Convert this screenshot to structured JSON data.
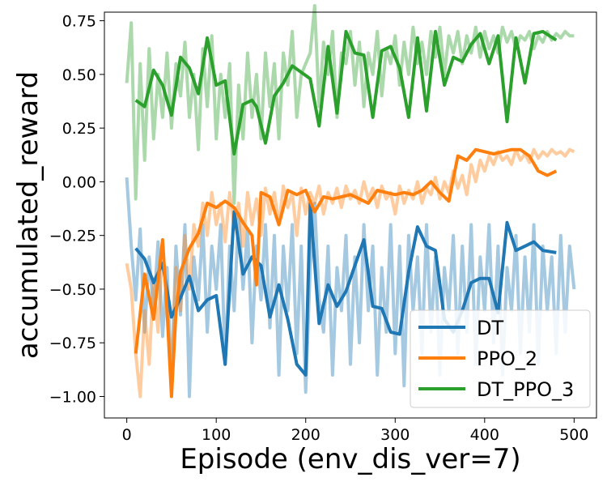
{
  "chart_data": {
    "type": "line",
    "xlabel": "Episode (env_dis_ver=7)",
    "ylabel": "accumulated_reward",
    "xlim": [
      -25,
      525
    ],
    "ylim": [
      -1.1,
      0.79
    ],
    "xticks": [
      0,
      100,
      200,
      300,
      400,
      500
    ],
    "xtick_labels": [
      "0",
      "100",
      "200",
      "300",
      "400",
      "500"
    ],
    "yticks": [
      -1.0,
      -0.75,
      -0.5,
      -0.25,
      0.0,
      0.25,
      0.5,
      0.75
    ],
    "ytick_labels": [
      "−1.00",
      "−0.75",
      "−0.50",
      "−0.25",
      "0.00",
      "0.25",
      "0.50",
      "0.75"
    ],
    "grid": false,
    "legend_position": "lower-right",
    "series": [
      {
        "name": "DT",
        "color": "#1f77b4",
        "raw_x": [
          0,
          5,
          10,
          15,
          20,
          25,
          30,
          35,
          40,
          45,
          50,
          55,
          60,
          65,
          70,
          75,
          80,
          85,
          90,
          95,
          100,
          105,
          110,
          115,
          120,
          125,
          130,
          135,
          140,
          145,
          150,
          155,
          160,
          165,
          170,
          175,
          180,
          185,
          190,
          195,
          200,
          205,
          210,
          215,
          220,
          225,
          230,
          235,
          240,
          245,
          250,
          255,
          260,
          265,
          270,
          275,
          280,
          285,
          290,
          295,
          300,
          305,
          310,
          315,
          320,
          325,
          330,
          335,
          340,
          345,
          350,
          355,
          360,
          365,
          370,
          375,
          380,
          385,
          390,
          395,
          400,
          405,
          410,
          415,
          420,
          425,
          430,
          435,
          440,
          445,
          450,
          455,
          460,
          465,
          470,
          475,
          480,
          485,
          490,
          495,
          500
        ],
        "raw_y": [
          0.02,
          -0.3,
          -0.55,
          -0.22,
          -0.7,
          -0.35,
          -0.6,
          -0.28,
          -0.72,
          -0.4,
          -0.95,
          -0.3,
          -0.62,
          -0.2,
          -1.0,
          -0.35,
          -0.55,
          -0.2,
          -0.7,
          -0.3,
          -0.5,
          -0.2,
          -0.85,
          -0.3,
          -0.6,
          -0.15,
          -0.5,
          -0.22,
          -0.75,
          -0.3,
          -0.55,
          -0.2,
          -0.68,
          -0.25,
          -0.9,
          -0.3,
          -0.6,
          -0.2,
          -0.8,
          -0.3,
          -0.98,
          -0.4,
          -0.1,
          -0.55,
          -0.7,
          -0.3,
          -0.9,
          -0.4,
          -0.6,
          -0.25,
          -0.85,
          -0.35,
          -0.75,
          -0.2,
          -0.6,
          -0.3,
          -0.9,
          -0.4,
          -0.7,
          -0.2,
          -0.8,
          -0.3,
          -0.95,
          -0.25,
          -0.6,
          -0.35,
          -0.8,
          -0.2,
          -0.7,
          -0.35,
          -0.9,
          -0.4,
          -0.6,
          -0.25,
          -0.8,
          -0.3,
          -0.7,
          -0.2,
          -0.85,
          -0.35,
          -0.6,
          -0.2,
          -0.75,
          -0.3,
          -0.9,
          -0.4,
          -0.6,
          -0.25,
          -0.8,
          -0.35,
          -0.7,
          -0.2,
          -0.85,
          -0.3,
          -0.6,
          -0.35,
          -0.8,
          -0.25,
          -0.7,
          -0.3,
          -0.5
        ],
        "x": [
          10,
          20,
          30,
          40,
          50,
          60,
          70,
          80,
          90,
          100,
          110,
          120,
          130,
          140,
          150,
          160,
          170,
          180,
          190,
          200,
          205,
          215,
          225,
          235,
          245,
          255,
          265,
          275,
          285,
          295,
          305,
          315,
          325,
          335,
          345,
          355,
          365,
          375,
          385,
          395,
          405,
          415,
          425,
          435,
          445,
          455,
          465,
          480
        ],
        "y": [
          -0.31,
          -0.36,
          -0.47,
          -0.38,
          -0.63,
          -0.54,
          -0.44,
          -0.6,
          -0.55,
          -0.53,
          -0.85,
          -0.14,
          -0.43,
          -0.35,
          -0.39,
          -0.63,
          -0.48,
          -0.64,
          -0.85,
          -0.9,
          -0.1,
          -0.66,
          -0.48,
          -0.58,
          -0.51,
          -0.39,
          -0.27,
          -0.58,
          -0.59,
          -0.7,
          -0.71,
          -0.42,
          -0.21,
          -0.3,
          -0.32,
          -0.64,
          -0.7,
          -0.6,
          -0.47,
          -0.45,
          -0.45,
          -0.61,
          -0.19,
          -0.32,
          -0.3,
          -0.28,
          -0.32,
          -0.33
        ]
      },
      {
        "name": "PPO_2",
        "color": "#ff7f0e",
        "raw_x": [
          0,
          5,
          10,
          15,
          20,
          25,
          30,
          35,
          40,
          45,
          50,
          55,
          60,
          65,
          70,
          75,
          80,
          85,
          90,
          95,
          100,
          105,
          110,
          115,
          120,
          125,
          130,
          135,
          140,
          145,
          150,
          155,
          160,
          165,
          170,
          175,
          180,
          185,
          190,
          195,
          200,
          205,
          210,
          215,
          220,
          225,
          230,
          235,
          240,
          245,
          250,
          255,
          260,
          265,
          270,
          275,
          280,
          285,
          290,
          295,
          300,
          305,
          310,
          315,
          320,
          325,
          330,
          335,
          340,
          345,
          350,
          355,
          360,
          365,
          370,
          375,
          380,
          385,
          390,
          395,
          400,
          405,
          410,
          415,
          420,
          425,
          430,
          435,
          440,
          445,
          450,
          455,
          460,
          465,
          470,
          475,
          480,
          485,
          490,
          495,
          500
        ],
        "raw_y": [
          -0.38,
          -0.5,
          -0.8,
          -1.0,
          -0.6,
          -0.85,
          -0.45,
          -0.7,
          -0.3,
          -0.55,
          -0.95,
          -0.4,
          -0.6,
          -0.25,
          -0.5,
          -0.2,
          -0.3,
          -0.1,
          -0.25,
          -0.05,
          -0.2,
          -0.1,
          -0.28,
          -0.05,
          -0.22,
          -0.1,
          -0.3,
          -0.05,
          -0.2,
          -0.08,
          -0.25,
          -0.03,
          -0.15,
          -0.05,
          -0.2,
          -0.02,
          -0.12,
          -0.05,
          -0.25,
          -0.03,
          -0.15,
          -0.05,
          -0.1,
          -0.02,
          -0.15,
          -0.05,
          -0.1,
          -0.03,
          -0.12,
          -0.02,
          -0.08,
          -0.04,
          -0.1,
          0.0,
          -0.08,
          -0.03,
          -0.12,
          -0.02,
          -0.08,
          -0.05,
          -0.15,
          -0.02,
          -0.1,
          -0.04,
          -0.08,
          0.0,
          -0.1,
          -0.03,
          -0.06,
          0.02,
          -0.08,
          0.0,
          -0.05,
          0.05,
          -0.03,
          0.03,
          -0.06,
          0.08,
          0.0,
          0.1,
          0.05,
          0.12,
          0.08,
          0.14,
          0.1,
          0.12,
          0.08,
          0.15,
          0.1,
          0.13,
          0.09,
          0.15,
          0.11,
          0.14,
          0.12,
          0.15,
          0.13,
          0.14,
          0.12,
          0.15,
          0.14
        ],
        "x": [
          10,
          20,
          30,
          40,
          45,
          50,
          55,
          60,
          70,
          80,
          90,
          100,
          110,
          120,
          130,
          140,
          145,
          150,
          160,
          170,
          180,
          190,
          200,
          210,
          220,
          230,
          240,
          250,
          260,
          270,
          280,
          290,
          300,
          310,
          320,
          330,
          340,
          350,
          360,
          370,
          380,
          390,
          400,
          410,
          420,
          430,
          440,
          450,
          460,
          470,
          480
        ],
        "y": [
          -0.8,
          -0.43,
          -0.64,
          -0.27,
          -0.6,
          -1.0,
          -0.61,
          -0.42,
          -0.31,
          -0.24,
          -0.1,
          -0.12,
          -0.09,
          -0.12,
          -0.19,
          -0.25,
          -0.48,
          -0.05,
          -0.07,
          -0.2,
          -0.04,
          -0.06,
          -0.04,
          -0.14,
          -0.07,
          -0.08,
          -0.07,
          -0.06,
          -0.08,
          -0.1,
          -0.04,
          -0.05,
          -0.06,
          -0.05,
          -0.06,
          -0.04,
          0.0,
          -0.05,
          -0.09,
          0.12,
          0.1,
          0.15,
          0.14,
          0.13,
          0.14,
          0.15,
          0.15,
          0.12,
          0.05,
          0.03,
          0.05
        ]
      },
      {
        "name": "DT_PPO_3",
        "color": "#2ca02c",
        "raw_x": [
          0,
          5,
          10,
          15,
          20,
          25,
          30,
          35,
          40,
          45,
          50,
          55,
          60,
          65,
          70,
          75,
          80,
          85,
          90,
          95,
          100,
          105,
          110,
          115,
          120,
          125,
          130,
          135,
          140,
          145,
          150,
          155,
          160,
          165,
          170,
          175,
          180,
          185,
          190,
          195,
          200,
          205,
          210,
          215,
          220,
          225,
          230,
          235,
          240,
          245,
          250,
          255,
          260,
          265,
          270,
          275,
          280,
          285,
          290,
          295,
          300,
          305,
          310,
          315,
          320,
          325,
          330,
          335,
          340,
          345,
          350,
          355,
          360,
          365,
          370,
          375,
          380,
          385,
          390,
          395,
          400,
          405,
          410,
          415,
          420,
          425,
          430,
          435,
          440,
          445,
          450,
          455,
          460,
          465,
          470,
          475,
          480,
          485,
          490,
          495,
          500
        ],
        "raw_y": [
          0.46,
          0.74,
          -0.08,
          0.55,
          0.1,
          0.62,
          0.2,
          0.5,
          0.3,
          0.6,
          0.25,
          0.55,
          0.4,
          0.65,
          0.3,
          0.5,
          0.15,
          0.62,
          0.35,
          0.68,
          0.2,
          0.5,
          0.3,
          0.55,
          -0.1,
          0.45,
          0.2,
          0.6,
          0.3,
          0.5,
          0.2,
          0.6,
          0.35,
          0.55,
          0.2,
          0.6,
          0.45,
          0.7,
          0.3,
          0.5,
          0.55,
          0.6,
          0.82,
          0.35,
          0.65,
          0.5,
          0.7,
          0.3,
          0.6,
          0.55,
          0.7,
          0.45,
          0.65,
          0.35,
          0.6,
          0.5,
          0.7,
          0.4,
          0.62,
          0.55,
          0.68,
          0.45,
          0.65,
          0.5,
          0.72,
          0.55,
          0.65,
          0.5,
          0.7,
          0.58,
          0.72,
          0.5,
          0.68,
          0.6,
          0.7,
          0.55,
          0.68,
          0.6,
          0.72,
          0.58,
          0.7,
          0.62,
          0.68,
          0.6,
          0.72,
          0.65,
          0.7,
          0.62,
          0.68,
          0.66,
          0.7,
          0.62,
          0.68,
          0.65,
          0.7,
          0.66,
          0.69,
          0.67,
          0.7,
          0.68,
          0.68
        ],
        "x": [
          10,
          20,
          30,
          40,
          50,
          60,
          70,
          80,
          90,
          100,
          110,
          120,
          130,
          140,
          145,
          155,
          165,
          175,
          185,
          195,
          205,
          215,
          225,
          235,
          245,
          255,
          265,
          275,
          285,
          295,
          305,
          315,
          325,
          335,
          345,
          355,
          365,
          375,
          385,
          395,
          405,
          415,
          425,
          435,
          445,
          455,
          465,
          480
        ],
        "y": [
          0.38,
          0.35,
          0.52,
          0.45,
          0.31,
          0.58,
          0.53,
          0.41,
          0.67,
          0.45,
          0.47,
          0.13,
          0.36,
          0.38,
          0.35,
          0.18,
          0.4,
          0.46,
          0.54,
          0.51,
          0.48,
          0.26,
          0.63,
          0.32,
          0.7,
          0.6,
          0.59,
          0.3,
          0.61,
          0.63,
          0.53,
          0.3,
          0.67,
          0.33,
          0.7,
          0.45,
          0.58,
          0.56,
          0.64,
          0.69,
          0.55,
          0.68,
          0.28,
          0.67,
          0.46,
          0.69,
          0.7,
          0.66
        ]
      }
    ]
  }
}
